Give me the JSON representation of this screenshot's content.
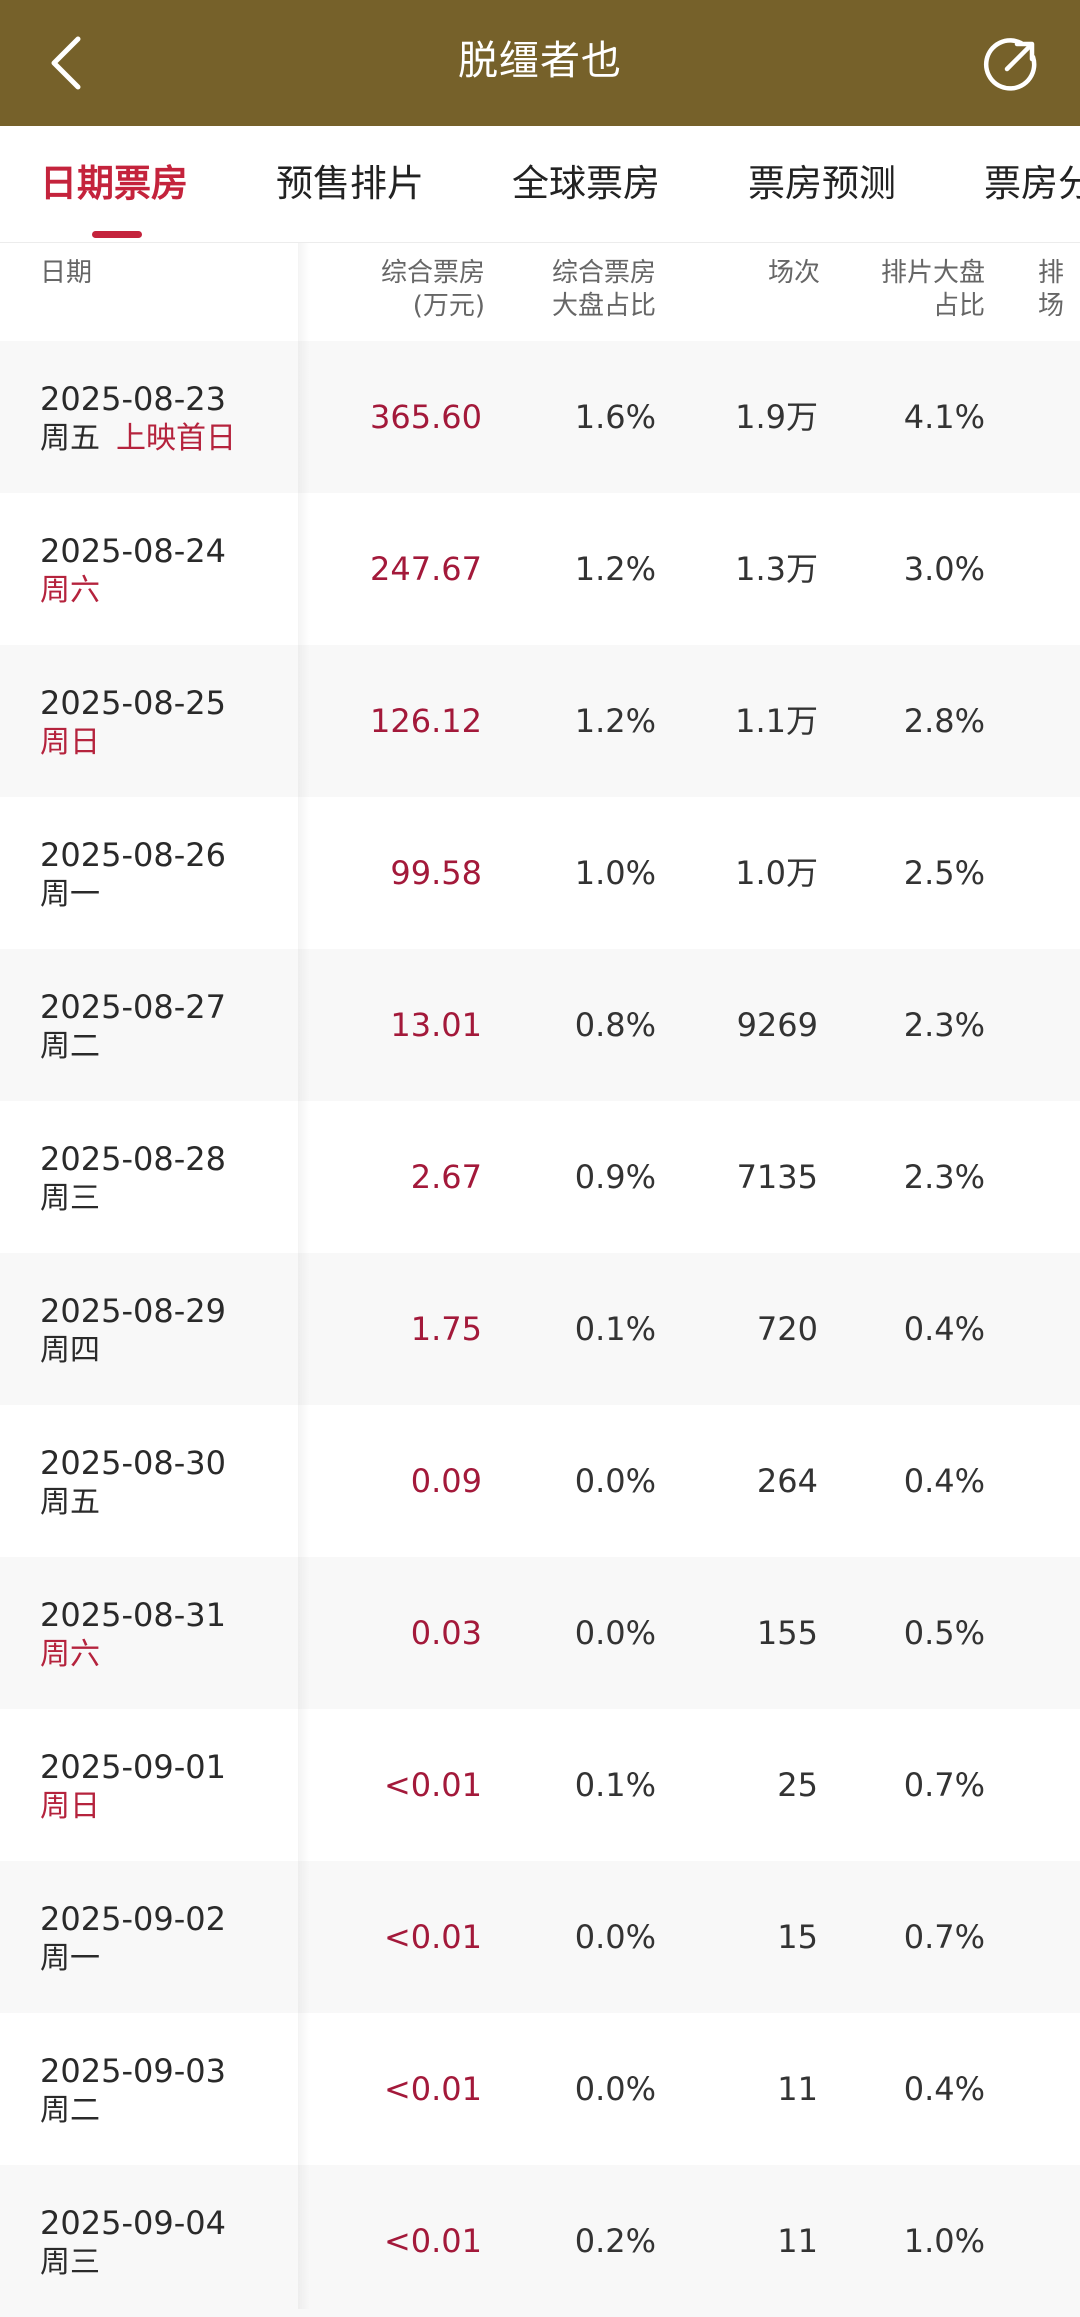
{
  "header": {
    "title": "脱缰者也",
    "back_icon": "chevron-left-icon",
    "share_icon": "share-icon"
  },
  "tabs": [
    {
      "label": "日期票房",
      "active": true
    },
    {
      "label": "预售排片",
      "active": false
    },
    {
      "label": "全球票房",
      "active": false
    },
    {
      "label": "票房预测",
      "active": false
    },
    {
      "label": "票房分",
      "active": false
    }
  ],
  "columns": {
    "date": "日期",
    "box_line1": "综合票房",
    "box_line2": "(万元)",
    "share_line1": "综合票房",
    "share_line2": "大盘占比",
    "shows": "场次",
    "slot_line1": "排片大盘",
    "slot_line2": "占比",
    "slot2": "排场"
  },
  "rows": [
    {
      "date": "2025-08-23",
      "weekday": "周五",
      "note": "上映首日",
      "weekday_red": false,
      "box": "365.60",
      "share": "1.6%",
      "shows": "1.9万",
      "slot": "4.1%"
    },
    {
      "date": "2025-08-24",
      "weekday": "周六",
      "note": "",
      "weekday_red": true,
      "box": "247.67",
      "share": "1.2%",
      "shows": "1.3万",
      "slot": "3.0%"
    },
    {
      "date": "2025-08-25",
      "weekday": "周日",
      "note": "",
      "weekday_red": true,
      "box": "126.12",
      "share": "1.2%",
      "shows": "1.1万",
      "slot": "2.8%"
    },
    {
      "date": "2025-08-26",
      "weekday": "周一",
      "note": "",
      "weekday_red": false,
      "box": "99.58",
      "share": "1.0%",
      "shows": "1.0万",
      "slot": "2.5%"
    },
    {
      "date": "2025-08-27",
      "weekday": "周二",
      "note": "",
      "weekday_red": false,
      "box": "13.01",
      "share": "0.8%",
      "shows": "9269",
      "slot": "2.3%"
    },
    {
      "date": "2025-08-28",
      "weekday": "周三",
      "note": "",
      "weekday_red": false,
      "box": "2.67",
      "share": "0.9%",
      "shows": "7135",
      "slot": "2.3%"
    },
    {
      "date": "2025-08-29",
      "weekday": "周四",
      "note": "",
      "weekday_red": false,
      "box": "1.75",
      "share": "0.1%",
      "shows": "720",
      "slot": "0.4%"
    },
    {
      "date": "2025-08-30",
      "weekday": "周五",
      "note": "",
      "weekday_red": false,
      "box": "0.09",
      "share": "0.0%",
      "shows": "264",
      "slot": "0.4%"
    },
    {
      "date": "2025-08-31",
      "weekday": "周六",
      "note": "",
      "weekday_red": true,
      "box": "0.03",
      "share": "0.0%",
      "shows": "155",
      "slot": "0.5%"
    },
    {
      "date": "2025-09-01",
      "weekday": "周日",
      "note": "",
      "weekday_red": true,
      "box": "<0.01",
      "share": "0.1%",
      "shows": "25",
      "slot": "0.7%"
    },
    {
      "date": "2025-09-02",
      "weekday": "周一",
      "note": "",
      "weekday_red": false,
      "box": "<0.01",
      "share": "0.0%",
      "shows": "15",
      "slot": "0.7%"
    },
    {
      "date": "2025-09-03",
      "weekday": "周二",
      "note": "",
      "weekday_red": false,
      "box": "<0.01",
      "share": "0.0%",
      "shows": "11",
      "slot": "0.4%"
    },
    {
      "date": "2025-09-04",
      "weekday": "周三",
      "note": "",
      "weekday_red": false,
      "box": "<0.01",
      "share": "0.2%",
      "shows": "11",
      "slot": "1.0%"
    }
  ],
  "colors": {
    "header_bg": "#76612a",
    "accent_red": "#c4233c",
    "box_value": "#a3193a"
  }
}
